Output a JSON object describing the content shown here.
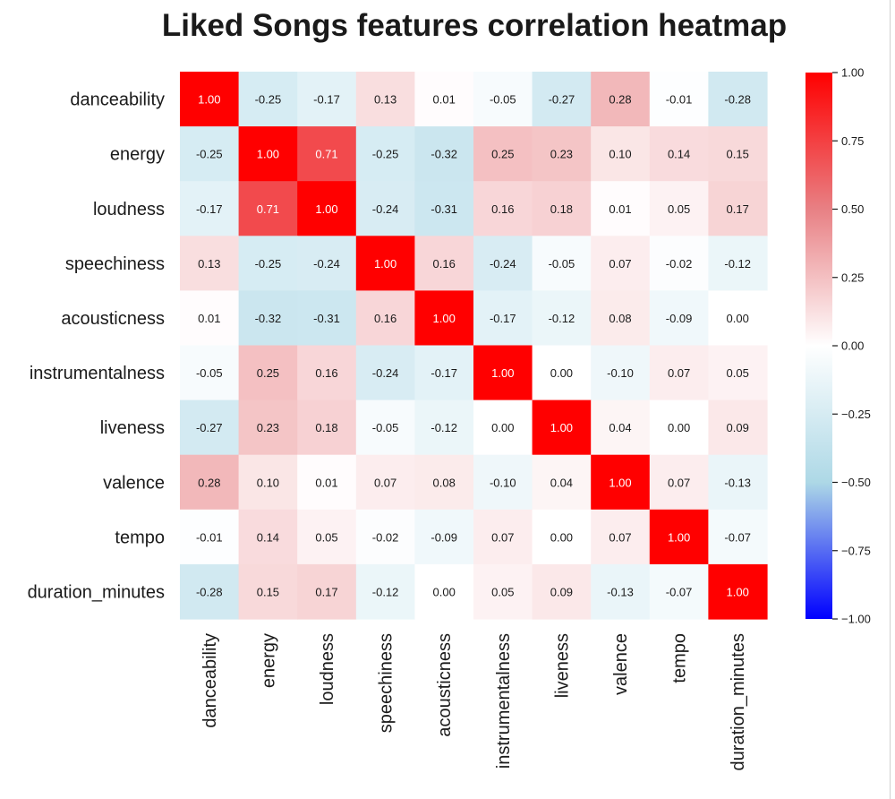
{
  "chart_data": {
    "type": "heatmap",
    "title": "Liked Songs features correlation heatmap",
    "x_labels": [
      "danceability",
      "energy",
      "loudness",
      "speechiness",
      "acousticness",
      "instrumentalness",
      "liveness",
      "valence",
      "tempo",
      "duration_minutes"
    ],
    "y_labels": [
      "danceability",
      "energy",
      "loudness",
      "speechiness",
      "acousticness",
      "instrumentalness",
      "liveness",
      "valence",
      "tempo",
      "duration_minutes"
    ],
    "values": [
      [
        1.0,
        -0.25,
        -0.17,
        0.13,
        0.01,
        -0.05,
        -0.27,
        0.28,
        -0.01,
        -0.28
      ],
      [
        -0.25,
        1.0,
        0.71,
        -0.25,
        -0.32,
        0.25,
        0.23,
        0.1,
        0.14,
        0.15
      ],
      [
        -0.17,
        0.71,
        1.0,
        -0.24,
        -0.31,
        0.16,
        0.18,
        0.01,
        0.05,
        0.17
      ],
      [
        0.13,
        -0.25,
        -0.24,
        1.0,
        0.16,
        -0.24,
        -0.05,
        0.07,
        -0.02,
        -0.12
      ],
      [
        0.01,
        -0.32,
        -0.31,
        0.16,
        1.0,
        -0.17,
        -0.12,
        0.08,
        -0.09,
        0.0
      ],
      [
        -0.05,
        0.25,
        0.16,
        -0.24,
        -0.17,
        1.0,
        -0.0,
        -0.1,
        0.07,
        0.05
      ],
      [
        -0.27,
        0.23,
        0.18,
        -0.05,
        -0.12,
        -0.0,
        1.0,
        0.04,
        -0.0,
        0.09
      ],
      [
        0.28,
        0.1,
        0.01,
        0.07,
        0.08,
        -0.1,
        0.04,
        1.0,
        0.07,
        -0.13
      ],
      [
        -0.01,
        0.14,
        0.05,
        -0.02,
        -0.09,
        0.07,
        -0.0,
        0.07,
        1.0,
        -0.07
      ],
      [
        -0.28,
        0.15,
        0.17,
        -0.12,
        0.0,
        0.05,
        0.09,
        -0.13,
        -0.07,
        1.0
      ]
    ],
    "annotation_format": "0.00",
    "colorbar": {
      "range": [
        -1.0,
        1.0
      ],
      "ticks": [
        1.0,
        0.75,
        0.5,
        0.25,
        0.0,
        -0.25,
        -0.5,
        -0.75,
        -1.0
      ],
      "tick_labels": [
        "1.00",
        "0.75",
        "0.50",
        "0.25",
        "0.00",
        "−0.25",
        "−0.50",
        "−0.75",
        "−1.00"
      ],
      "position": "right"
    },
    "colormap": {
      "stops": [
        {
          "value": -1.0,
          "color": "#0000ff"
        },
        {
          "value": -0.5,
          "color": "#add8e6"
        },
        {
          "value": 0.0,
          "color": "#ffffff"
        },
        {
          "value": 0.5,
          "color": "#e88084"
        },
        {
          "value": 1.0,
          "color": "#ff0000"
        }
      ]
    },
    "grid": false
  }
}
